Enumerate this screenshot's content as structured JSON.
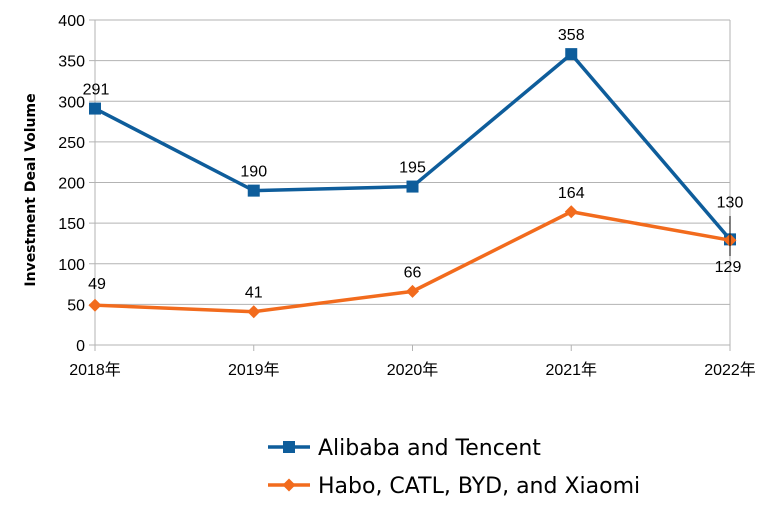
{
  "chart_data": {
    "type": "line",
    "categories": [
      "2018年",
      "2019年",
      "2020年",
      "2021年",
      "2022年"
    ],
    "series": [
      {
        "name": "Alibaba and Tencent",
        "values": [
          291,
          190,
          195,
          358,
          130
        ],
        "color": "#0e5d9b",
        "marker": "square"
      },
      {
        "name": "Habo, CATL, BYD, and Xiaomi",
        "values": [
          49,
          41,
          66,
          164,
          129
        ],
        "color": "#f26b1d",
        "marker": "diamond"
      }
    ],
    "ylabel": "Investment Deal Volume",
    "xlabel": "",
    "ylim": [
      0,
      400
    ],
    "yticks": [
      0,
      50,
      100,
      150,
      200,
      250,
      300,
      350,
      400
    ],
    "grid": true,
    "legend": "bottom"
  }
}
